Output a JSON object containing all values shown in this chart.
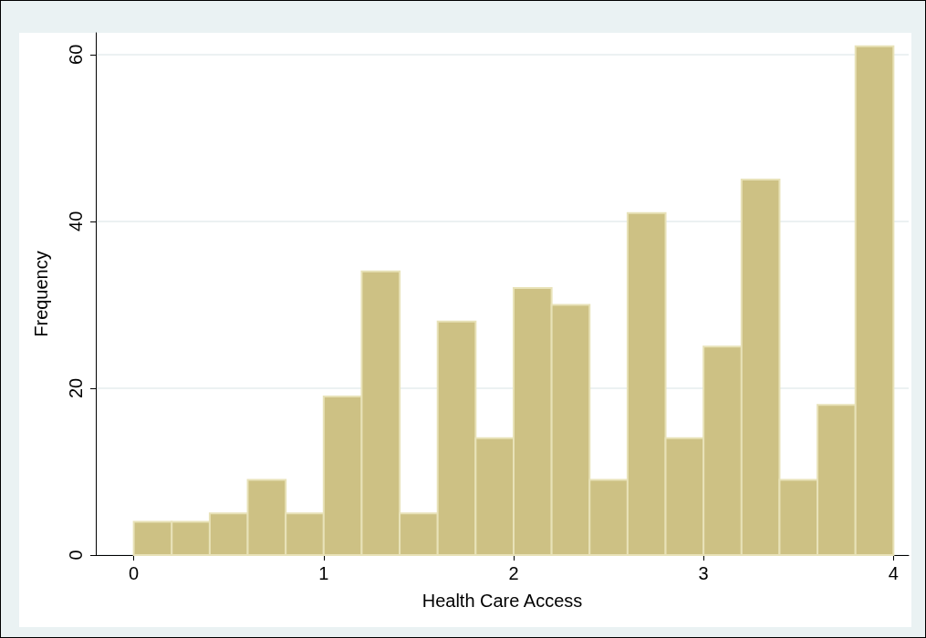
{
  "chart_data": {
    "type": "histogram",
    "xlabel": "Health Care Access",
    "ylabel": "Frequency",
    "bins": [
      0,
      0.2,
      0.4,
      0.6,
      0.8,
      1,
      1.2,
      1.4,
      1.6,
      1.8,
      2,
      2.2,
      2.4,
      2.6,
      2.8,
      3,
      3.2,
      3.4,
      3.6,
      3.8,
      4
    ],
    "values": [
      4,
      4,
      5,
      9,
      5,
      19,
      34,
      5,
      28,
      14,
      32,
      30,
      9,
      41,
      14,
      25,
      45,
      9,
      18,
      61
    ],
    "color": "#cdc184",
    "xlim": [
      -0.2,
      4.08
    ],
    "xticks": [
      0,
      1,
      2,
      3,
      4
    ],
    "ylim": [
      0,
      62.6
    ],
    "yticks": [
      0,
      20,
      40,
      60
    ],
    "grid": "y"
  }
}
